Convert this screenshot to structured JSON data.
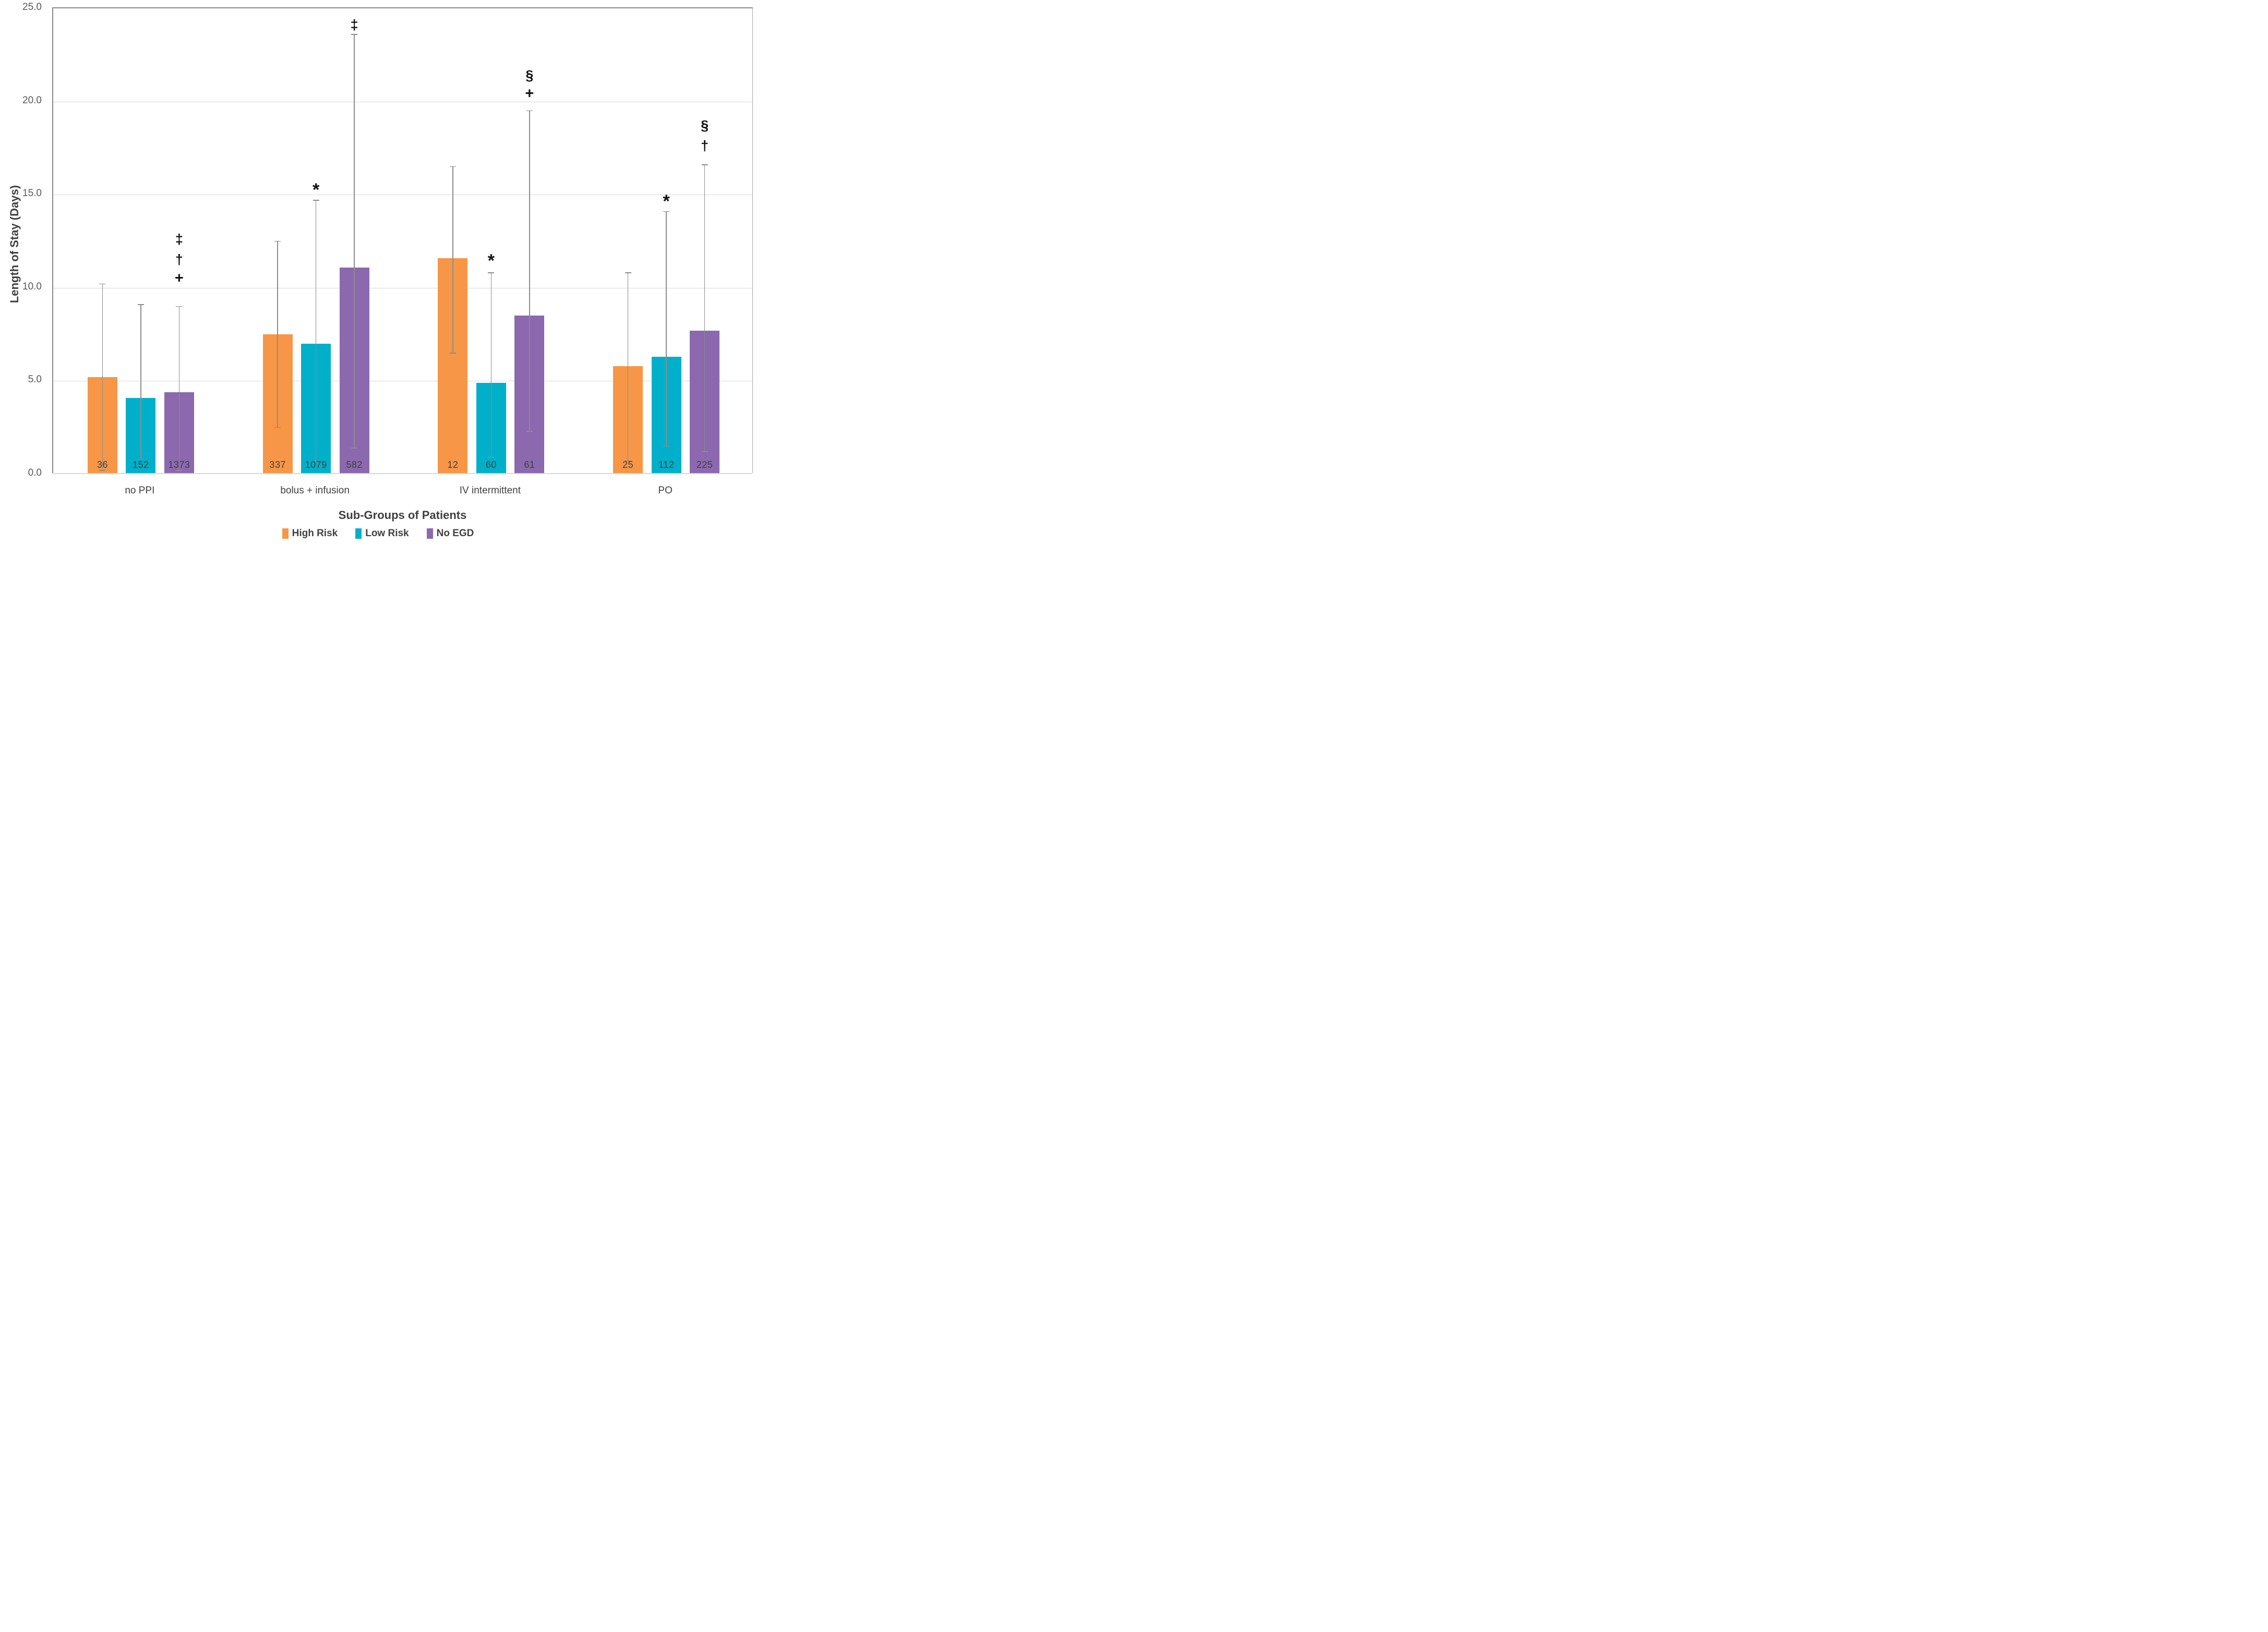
{
  "chart_data": {
    "type": "bar",
    "title": "",
    "xlabel": "Sub-Groups of Patients",
    "ylabel": "Length of Stay (Days)",
    "ylim": [
      0,
      25
    ],
    "grid": true,
    "legend_position": "bottom",
    "yticks": [
      {
        "value": 0,
        "label": "0.0"
      },
      {
        "value": 5,
        "label": "5.0"
      },
      {
        "value": 10,
        "label": "10.0"
      },
      {
        "value": 15,
        "label": "15.0"
      },
      {
        "value": 20,
        "label": "20.0"
      },
      {
        "value": 25,
        "label": "25.0"
      }
    ],
    "categories": [
      "no PPI",
      "bolus + infusion",
      "IV intermittent",
      "PO"
    ],
    "series": [
      {
        "name": "High Risk",
        "color": "#F79646",
        "values": [
          5.2,
          7.5,
          11.6,
          5.8
        ],
        "error_low": [
          0.2,
          2.5,
          6.5,
          0.7
        ],
        "error_high": [
          10.2,
          12.5,
          16.5,
          10.8
        ],
        "bar_counts": [
          "36",
          "337",
          "12",
          "25"
        ],
        "annotations": [
          [],
          [],
          [],
          []
        ]
      },
      {
        "name": "Low Risk",
        "color": "#00B0CA",
        "values": [
          4.1,
          7.0,
          4.9,
          6.3
        ],
        "error_low": [
          0.8,
          0.7,
          0.9,
          1.5
        ],
        "error_high": [
          9.1,
          14.7,
          10.8,
          14.1
        ],
        "bar_counts": [
          "152",
          "1079",
          "60",
          "112"
        ],
        "annotations": [
          [],
          [
            {
              "symbol": "*",
              "y": 15.5
            }
          ],
          [
            {
              "symbol": "*",
              "y": 11.7
            }
          ],
          [
            {
              "symbol": "*",
              "y": 14.9
            }
          ]
        ]
      },
      {
        "name": "No EGD",
        "color": "#8C68AF",
        "values": [
          4.4,
          11.1,
          8.5,
          7.7
        ],
        "error_low": [
          0.2,
          1.4,
          2.3,
          1.2
        ],
        "error_high": [
          9.0,
          23.6,
          19.5,
          16.6
        ],
        "bar_counts": [
          "1373",
          "582",
          "61",
          "225"
        ],
        "annotations": [
          [
            {
              "symbol": "‡",
              "y": 12.6
            },
            {
              "symbol": "†",
              "y": 11.5
            },
            {
              "symbol": "+",
              "y": 10.5
            }
          ],
          [
            {
              "symbol": "‡",
              "y": 24.1
            }
          ],
          [
            {
              "symbol": "§",
              "y": 21.4
            },
            {
              "symbol": "+",
              "y": 20.4
            }
          ],
          [
            {
              "symbol": "§",
              "y": 18.7
            },
            {
              "symbol": "†",
              "y": 17.6
            }
          ]
        ]
      }
    ],
    "error_bar_color": "#8C8C8C",
    "annotation_color": "#111111"
  },
  "colors": {
    "background": "#FFFFFF",
    "gridline": "#D9D9D9",
    "plot_border": "#898989",
    "x_axis_line": "#D9D9D9",
    "tick_label": "#595959",
    "axis_title": "#404040",
    "bar_count_label": "#3F3F3F"
  }
}
